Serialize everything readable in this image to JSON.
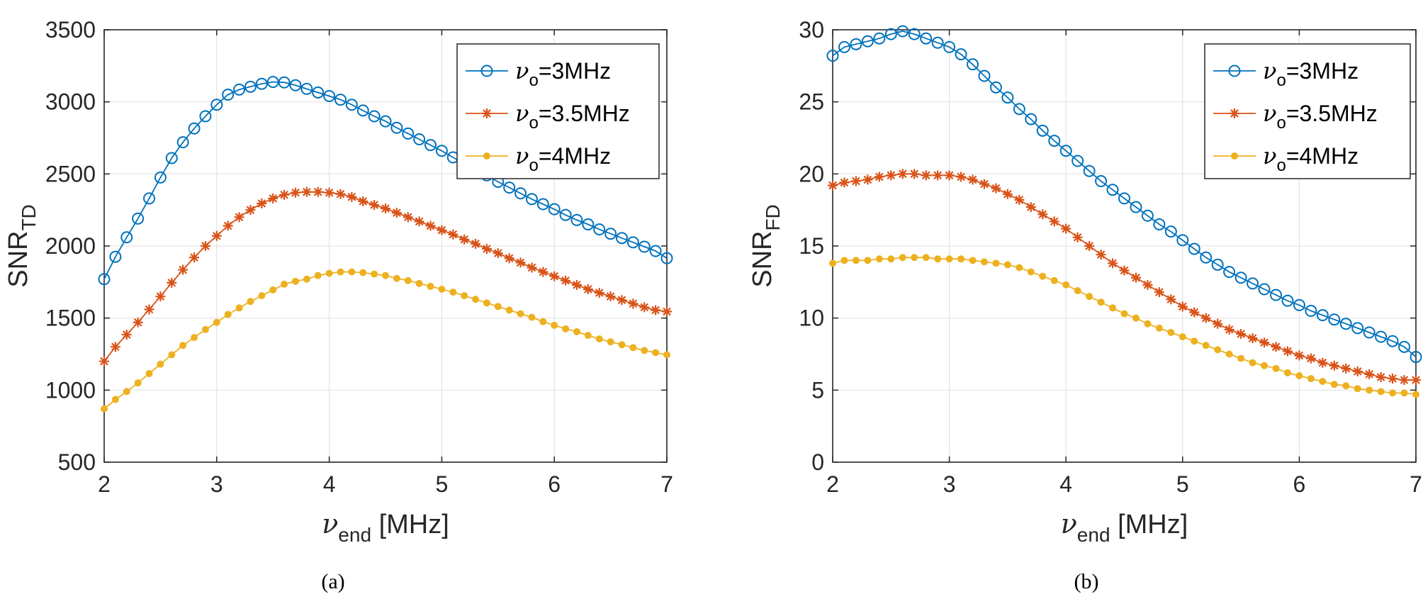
{
  "colors": {
    "series1": "#0072BD",
    "series2": "#D95319",
    "series3": "#EDB120"
  },
  "chart_data": [
    {
      "type": "line",
      "panel_label": "(a)",
      "xlabel": {
        "symbol": "ν",
        "sub": "end",
        "unit": "[MHz]"
      },
      "ylabel": {
        "main": "SNR",
        "sub": "TD"
      },
      "xlim": [
        2,
        7
      ],
      "ylim": [
        500,
        3500
      ],
      "xticks": [
        "2",
        "3",
        "4",
        "5",
        "6",
        "7"
      ],
      "yticks": [
        "500",
        "1000",
        "1500",
        "2000",
        "2500",
        "3000",
        "3500"
      ],
      "grid": true,
      "legend_position": "top-right",
      "x": [
        2.0,
        2.1,
        2.2,
        2.3,
        2.4,
        2.5,
        2.6,
        2.7,
        2.8,
        2.9,
        3.0,
        3.1,
        3.2,
        3.3,
        3.4,
        3.5,
        3.6,
        3.7,
        3.8,
        3.9,
        4.0,
        4.1,
        4.2,
        4.3,
        4.4,
        4.5,
        4.6,
        4.7,
        4.8,
        4.9,
        5.0,
        5.1,
        5.2,
        5.3,
        5.4,
        5.5,
        5.6,
        5.7,
        5.8,
        5.9,
        6.0,
        6.1,
        6.2,
        6.3,
        6.4,
        6.5,
        6.6,
        6.7,
        6.8,
        6.9,
        7.0
      ],
      "series": [
        {
          "name": {
            "sym": "ν",
            "sub": "o",
            "rest": "=3MHz"
          },
          "marker": "circle",
          "color_key": "series1",
          "values": [
            1770,
            1925,
            2060,
            2190,
            2330,
            2475,
            2610,
            2720,
            2815,
            2900,
            2980,
            3050,
            3085,
            3105,
            3125,
            3138,
            3135,
            3115,
            3090,
            3065,
            3040,
            3015,
            2980,
            2940,
            2900,
            2865,
            2820,
            2780,
            2740,
            2700,
            2660,
            2615,
            2570,
            2530,
            2490,
            2445,
            2405,
            2365,
            2325,
            2290,
            2255,
            2215,
            2180,
            2150,
            2115,
            2085,
            2055,
            2025,
            1995,
            1965,
            1915
          ]
        },
        {
          "name": {
            "sym": "ν",
            "sub": "o",
            "rest": "=3.5MHz"
          },
          "marker": "asterisk",
          "color_key": "series2",
          "values": [
            1200,
            1300,
            1385,
            1470,
            1560,
            1650,
            1745,
            1835,
            1920,
            2000,
            2070,
            2140,
            2200,
            2250,
            2295,
            2330,
            2355,
            2370,
            2375,
            2375,
            2370,
            2360,
            2340,
            2310,
            2285,
            2260,
            2230,
            2200,
            2170,
            2140,
            2110,
            2080,
            2045,
            2015,
            1980,
            1950,
            1915,
            1885,
            1850,
            1820,
            1790,
            1760,
            1730,
            1700,
            1675,
            1650,
            1625,
            1600,
            1575,
            1555,
            1545
          ]
        },
        {
          "name": {
            "sym": "ν",
            "sub": "o",
            "rest": "=4MHz"
          },
          "marker": "dot",
          "color_key": "series3",
          "values": [
            870,
            935,
            990,
            1050,
            1115,
            1180,
            1245,
            1310,
            1365,
            1420,
            1470,
            1525,
            1570,
            1615,
            1655,
            1695,
            1735,
            1755,
            1770,
            1795,
            1810,
            1820,
            1820,
            1815,
            1805,
            1795,
            1775,
            1760,
            1740,
            1720,
            1700,
            1680,
            1655,
            1630,
            1605,
            1580,
            1555,
            1530,
            1505,
            1475,
            1450,
            1425,
            1405,
            1380,
            1355,
            1335,
            1315,
            1295,
            1275,
            1260,
            1245
          ]
        }
      ]
    },
    {
      "type": "line",
      "panel_label": "(b)",
      "xlabel": {
        "symbol": "ν",
        "sub": "end",
        "unit": "[MHz]"
      },
      "ylabel": {
        "main": "SNR",
        "sub": "FD"
      },
      "xlim": [
        2,
        7
      ],
      "ylim": [
        0,
        30
      ],
      "xticks": [
        "2",
        "3",
        "4",
        "5",
        "6",
        "7"
      ],
      "yticks": [
        "0",
        "5",
        "10",
        "15",
        "20",
        "25",
        "30"
      ],
      "grid": true,
      "legend_position": "top-right",
      "x": [
        2.0,
        2.1,
        2.2,
        2.3,
        2.4,
        2.5,
        2.6,
        2.7,
        2.8,
        2.9,
        3.0,
        3.1,
        3.2,
        3.3,
        3.4,
        3.5,
        3.6,
        3.7,
        3.8,
        3.9,
        4.0,
        4.1,
        4.2,
        4.3,
        4.4,
        4.5,
        4.6,
        4.7,
        4.8,
        4.9,
        5.0,
        5.1,
        5.2,
        5.3,
        5.4,
        5.5,
        5.6,
        5.7,
        5.8,
        5.9,
        6.0,
        6.1,
        6.2,
        6.3,
        6.4,
        6.5,
        6.6,
        6.7,
        6.8,
        6.9,
        7.0
      ],
      "series": [
        {
          "name": {
            "sym": "ν",
            "sub": "o",
            "rest": "=3MHz"
          },
          "marker": "circle",
          "color_key": "series1",
          "values": [
            28.2,
            28.8,
            29.0,
            29.2,
            29.4,
            29.7,
            29.9,
            29.7,
            29.4,
            29.1,
            28.8,
            28.3,
            27.6,
            26.8,
            26.0,
            25.3,
            24.5,
            23.8,
            23.0,
            22.3,
            21.6,
            20.9,
            20.2,
            19.5,
            18.9,
            18.3,
            17.7,
            17.1,
            16.5,
            16.0,
            15.4,
            14.8,
            14.2,
            13.7,
            13.2,
            12.8,
            12.4,
            12.0,
            11.6,
            11.2,
            10.9,
            10.5,
            10.2,
            9.9,
            9.6,
            9.3,
            9.0,
            8.7,
            8.4,
            8.0,
            7.3
          ]
        },
        {
          "name": {
            "sym": "ν",
            "sub": "o",
            "rest": "=3.5MHz"
          },
          "marker": "asterisk",
          "color_key": "series2",
          "values": [
            19.2,
            19.4,
            19.5,
            19.6,
            19.8,
            19.9,
            20.0,
            20.0,
            19.9,
            19.9,
            19.9,
            19.8,
            19.6,
            19.3,
            19.0,
            18.6,
            18.2,
            17.7,
            17.2,
            16.7,
            16.2,
            15.6,
            15.0,
            14.4,
            13.8,
            13.3,
            12.8,
            12.3,
            11.8,
            11.3,
            10.8,
            10.4,
            10.0,
            9.6,
            9.2,
            8.9,
            8.6,
            8.3,
            8.0,
            7.7,
            7.4,
            7.2,
            6.9,
            6.7,
            6.5,
            6.3,
            6.1,
            5.9,
            5.8,
            5.7,
            5.7
          ]
        },
        {
          "name": {
            "sym": "ν",
            "sub": "o",
            "rest": "=4MHz"
          },
          "marker": "dot",
          "color_key": "series3",
          "values": [
            13.8,
            14.0,
            14.0,
            14.0,
            14.1,
            14.1,
            14.2,
            14.2,
            14.2,
            14.1,
            14.1,
            14.1,
            14.0,
            13.9,
            13.8,
            13.7,
            13.5,
            13.2,
            12.9,
            12.6,
            12.3,
            11.9,
            11.5,
            11.1,
            10.7,
            10.3,
            10.0,
            9.6,
            9.3,
            9.0,
            8.7,
            8.4,
            8.1,
            7.8,
            7.5,
            7.2,
            6.9,
            6.7,
            6.5,
            6.2,
            6.0,
            5.8,
            5.6,
            5.4,
            5.3,
            5.1,
            5.0,
            4.9,
            4.8,
            4.8,
            4.7
          ]
        }
      ]
    }
  ]
}
